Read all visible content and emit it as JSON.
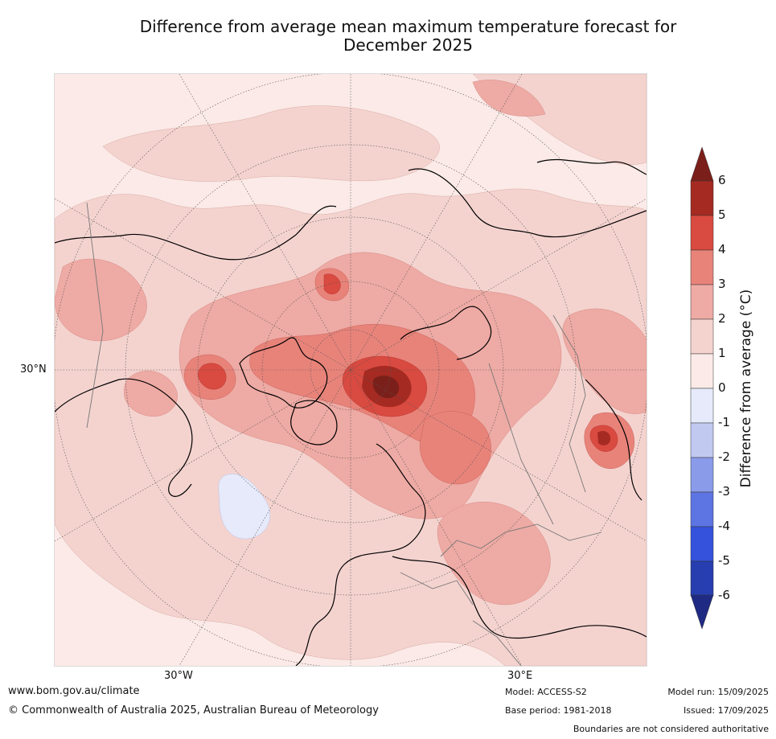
{
  "title_line1": "Difference from average mean maximum temperature forecast for",
  "title_line2": "December 2025",
  "graticule_labels": {
    "lat_30n": "30°N",
    "lon_30w": "30°W",
    "lon_30e": "30°E"
  },
  "colorbar": {
    "label": "Difference from average ($^\\circ$C)",
    "label_display": "Difference from average (°C)",
    "ticks": [
      "6",
      "5",
      "4",
      "3",
      "2",
      "1",
      "0",
      "-1",
      "-2",
      "-3",
      "-4",
      "-5",
      "-6"
    ],
    "bins": [
      {
        "range": "5 to 6",
        "color": "#a52a22"
      },
      {
        "range": "4 to 5",
        "color": "#d94a40"
      },
      {
        "range": "3 to 4",
        "color": "#e8837a"
      },
      {
        "range": "2 to 3",
        "color": "#eeaaa4"
      },
      {
        "range": "1 to 2",
        "color": "#f4d3cf"
      },
      {
        "range": "0 to 1",
        "color": "#fbeae7"
      },
      {
        "range": "-1 to 0",
        "color": "#e6eafa"
      },
      {
        "range": "-2 to -1",
        "color": "#c1c9f1"
      },
      {
        "range": "-3 to -2",
        "color": "#8a9bea"
      },
      {
        "range": "-4 to -3",
        "color": "#5d74e3"
      },
      {
        "range": "-5 to -4",
        "color": "#3552dc"
      },
      {
        "range": "-6 to -5",
        "color": "#263eaf"
      }
    ],
    "over_color": "#7b1f1a",
    "under_color": "#1f2a82"
  },
  "footer": {
    "website": "www.bom.gov.au/climate",
    "copyright": "© Commonwealth of Australia 2025, Australian Bureau of Meteorology",
    "model": "Model: ACCESS-S2",
    "base_period": "Base period: 1981-2018",
    "model_run": "Model run: 15/09/2025",
    "issued": "Issued: 17/09/2025",
    "disclaimer": "Boundaries are not considered authoritative"
  }
}
